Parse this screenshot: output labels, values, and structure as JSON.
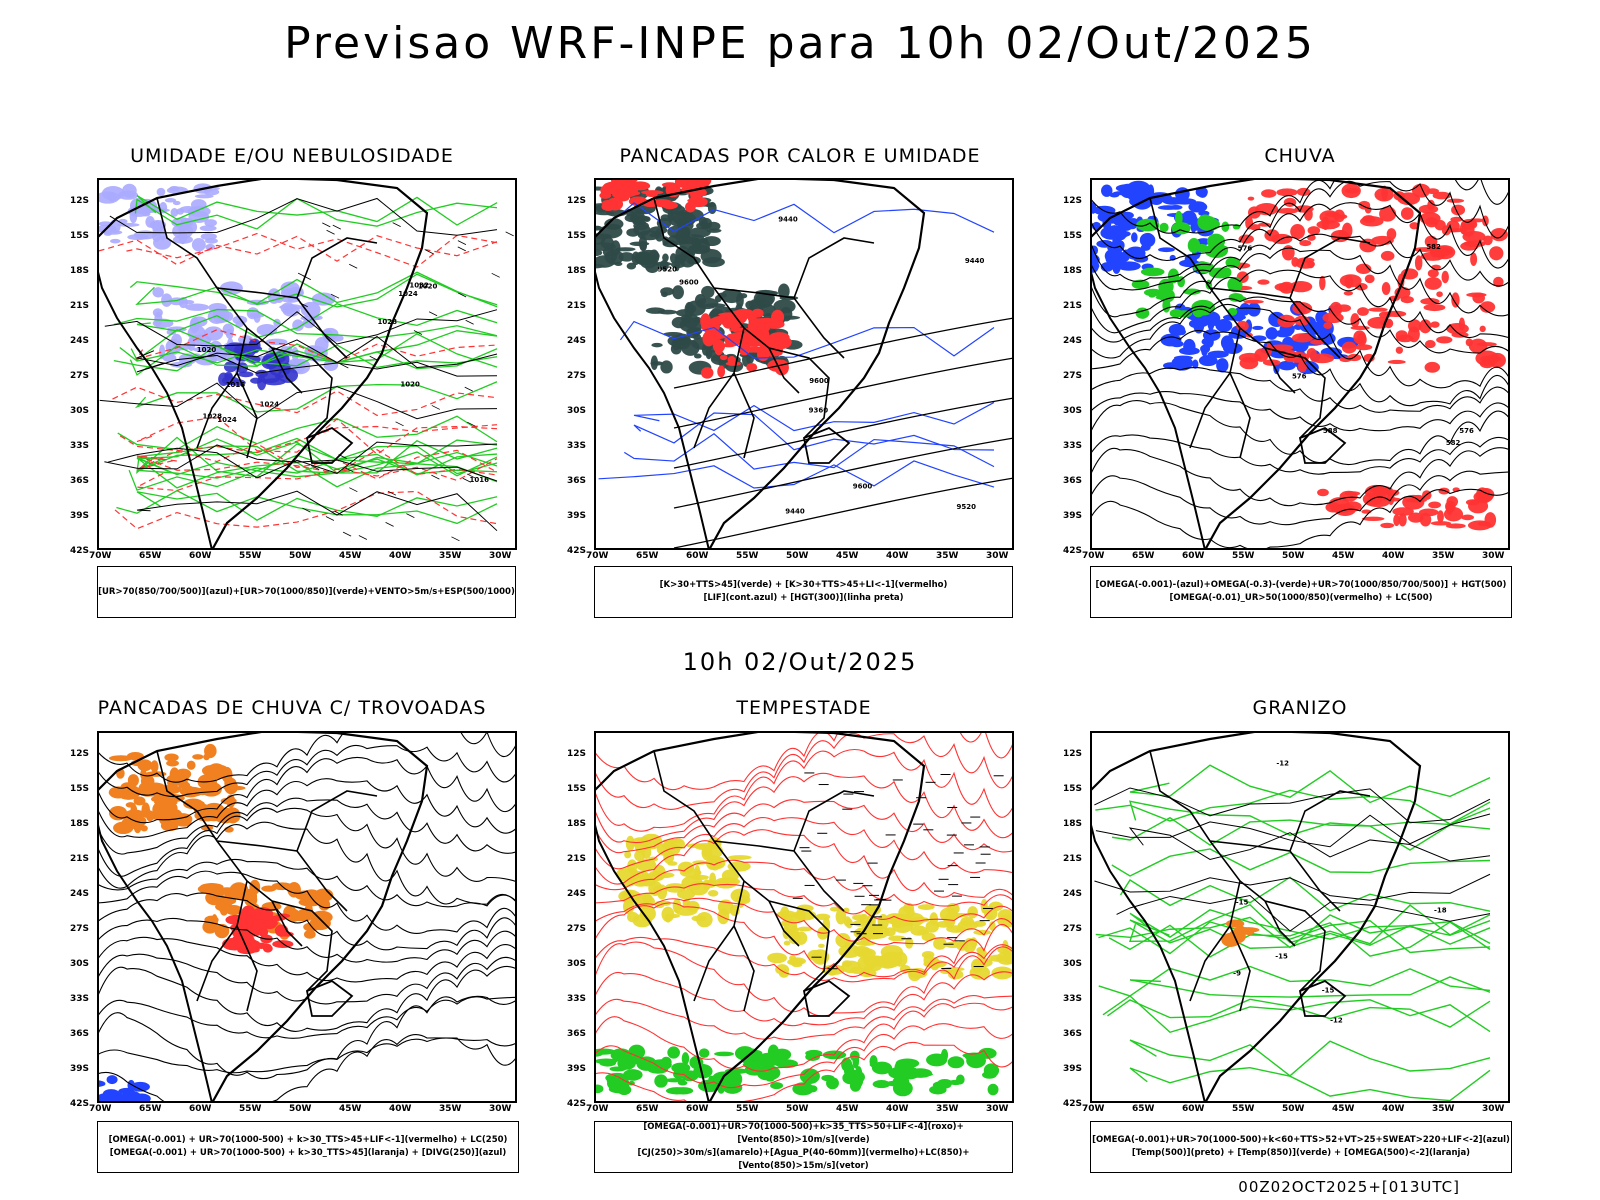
{
  "header": {
    "title": "Previsao WRF-INPE  para 10h 02/Out/2025"
  },
  "mid_date": "10h 02/Out/2025",
  "run_stamp": "00Z02OCT2025+[013UTC]",
  "axes": {
    "lat_labels": [
      "12S",
      "15S",
      "18S",
      "21S",
      "24S",
      "27S",
      "30S",
      "33S",
      "36S",
      "39S",
      "42S"
    ],
    "lon_labels": [
      "70W",
      "65W",
      "60W",
      "55W",
      "50W",
      "45W",
      "40W",
      "35W",
      "30W"
    ]
  },
  "colors": {
    "frame": "#000000",
    "red": "#ff3333",
    "green": "#22cc22",
    "blue": "#2244ff",
    "lavender": "#aaaaff",
    "darkblue": "#3333cc",
    "teal": "#2e4a48",
    "orange": "#f08020",
    "yellow": "#e6d830"
  },
  "panels": [
    {
      "id": "umidade",
      "title": "UMIDADE E/OU NEBULOSIDADE",
      "legend": [
        "[UR>70(850/700/500)](azul)+[UR>70(1000/850)](verde)+VENTO>5m/s+ESP(500/1000)"
      ],
      "contour_labels": [
        "1016",
        "1020",
        "1024",
        "1028",
        "1032",
        "1024",
        "1020",
        "1028",
        "1024",
        "1016",
        "1020"
      ]
    },
    {
      "id": "pancadas",
      "title": "PANCADAS POR CALOR E UMIDADE",
      "legend": [
        "[K>30+TTS>45](verde) + [K>30+TTS>45+LI<-1](vermelho)",
        "[LIF](cont.azul) + [HGT(300)](linha preta)"
      ],
      "contour_labels": [
        "9600",
        "9520",
        "9440",
        "9600",
        "9520",
        "9440",
        "9440",
        "9360",
        "9600"
      ]
    },
    {
      "id": "chuva",
      "title": "CHUVA",
      "legend": [
        "[OMEGA(-0.001)-(azul)+OMEGA(-0.3)-(verde)+UR>70(1000/850/700/500)] + HGT(500)",
        "[OMEGA(-0.01)_UR>50(1000/850)(vermelho) + LC(500)"
      ],
      "contour_labels": [
        "588",
        "582",
        "576",
        "576",
        "576",
        "582"
      ]
    },
    {
      "id": "trovoadas",
      "title": "PANCADAS DE CHUVA C/ TROVOADAS",
      "legend": [
        "[OMEGA(-0.001) + UR>70(1000-500) + k>30_TTS>45+LIF<-1](vermelho) + LC(250)",
        "[OMEGA(-0.001) + UR>70(1000-500) + k>30_TTS>45](laranja) + [DIVG(250)](azul)"
      ],
      "contour_labels": []
    },
    {
      "id": "tempestade",
      "title": "TEMPESTADE",
      "legend": [
        "[OMEGA(-0.001)+UR>70(1000-500)+k>35_TTS>50+LIF<-4](roxo)+[Vento(850)>10m/s](verde)",
        "[CJ(250)>30m/s](amarelo)+[Agua_P(40-60mm)](vermelho)+LC(850)+[Vento(850)>15m/s](vetor)"
      ],
      "contour_labels": []
    },
    {
      "id": "granizo",
      "title": "GRANIZO",
      "legend": [
        "[OMEGA(-0.001)+UR>70(1000-500)+k<60+TTS>52+VT>25+SWEAT>220+LIF<-2](azul)",
        "[Temp(500)](preto) + [Temp(850)](verde) + [OMEGA(500)<-2](laranja)"
      ],
      "contour_labels": [
        "-9",
        "-12",
        "-15",
        "-15",
        "-18",
        "-15",
        "-12"
      ]
    }
  ]
}
